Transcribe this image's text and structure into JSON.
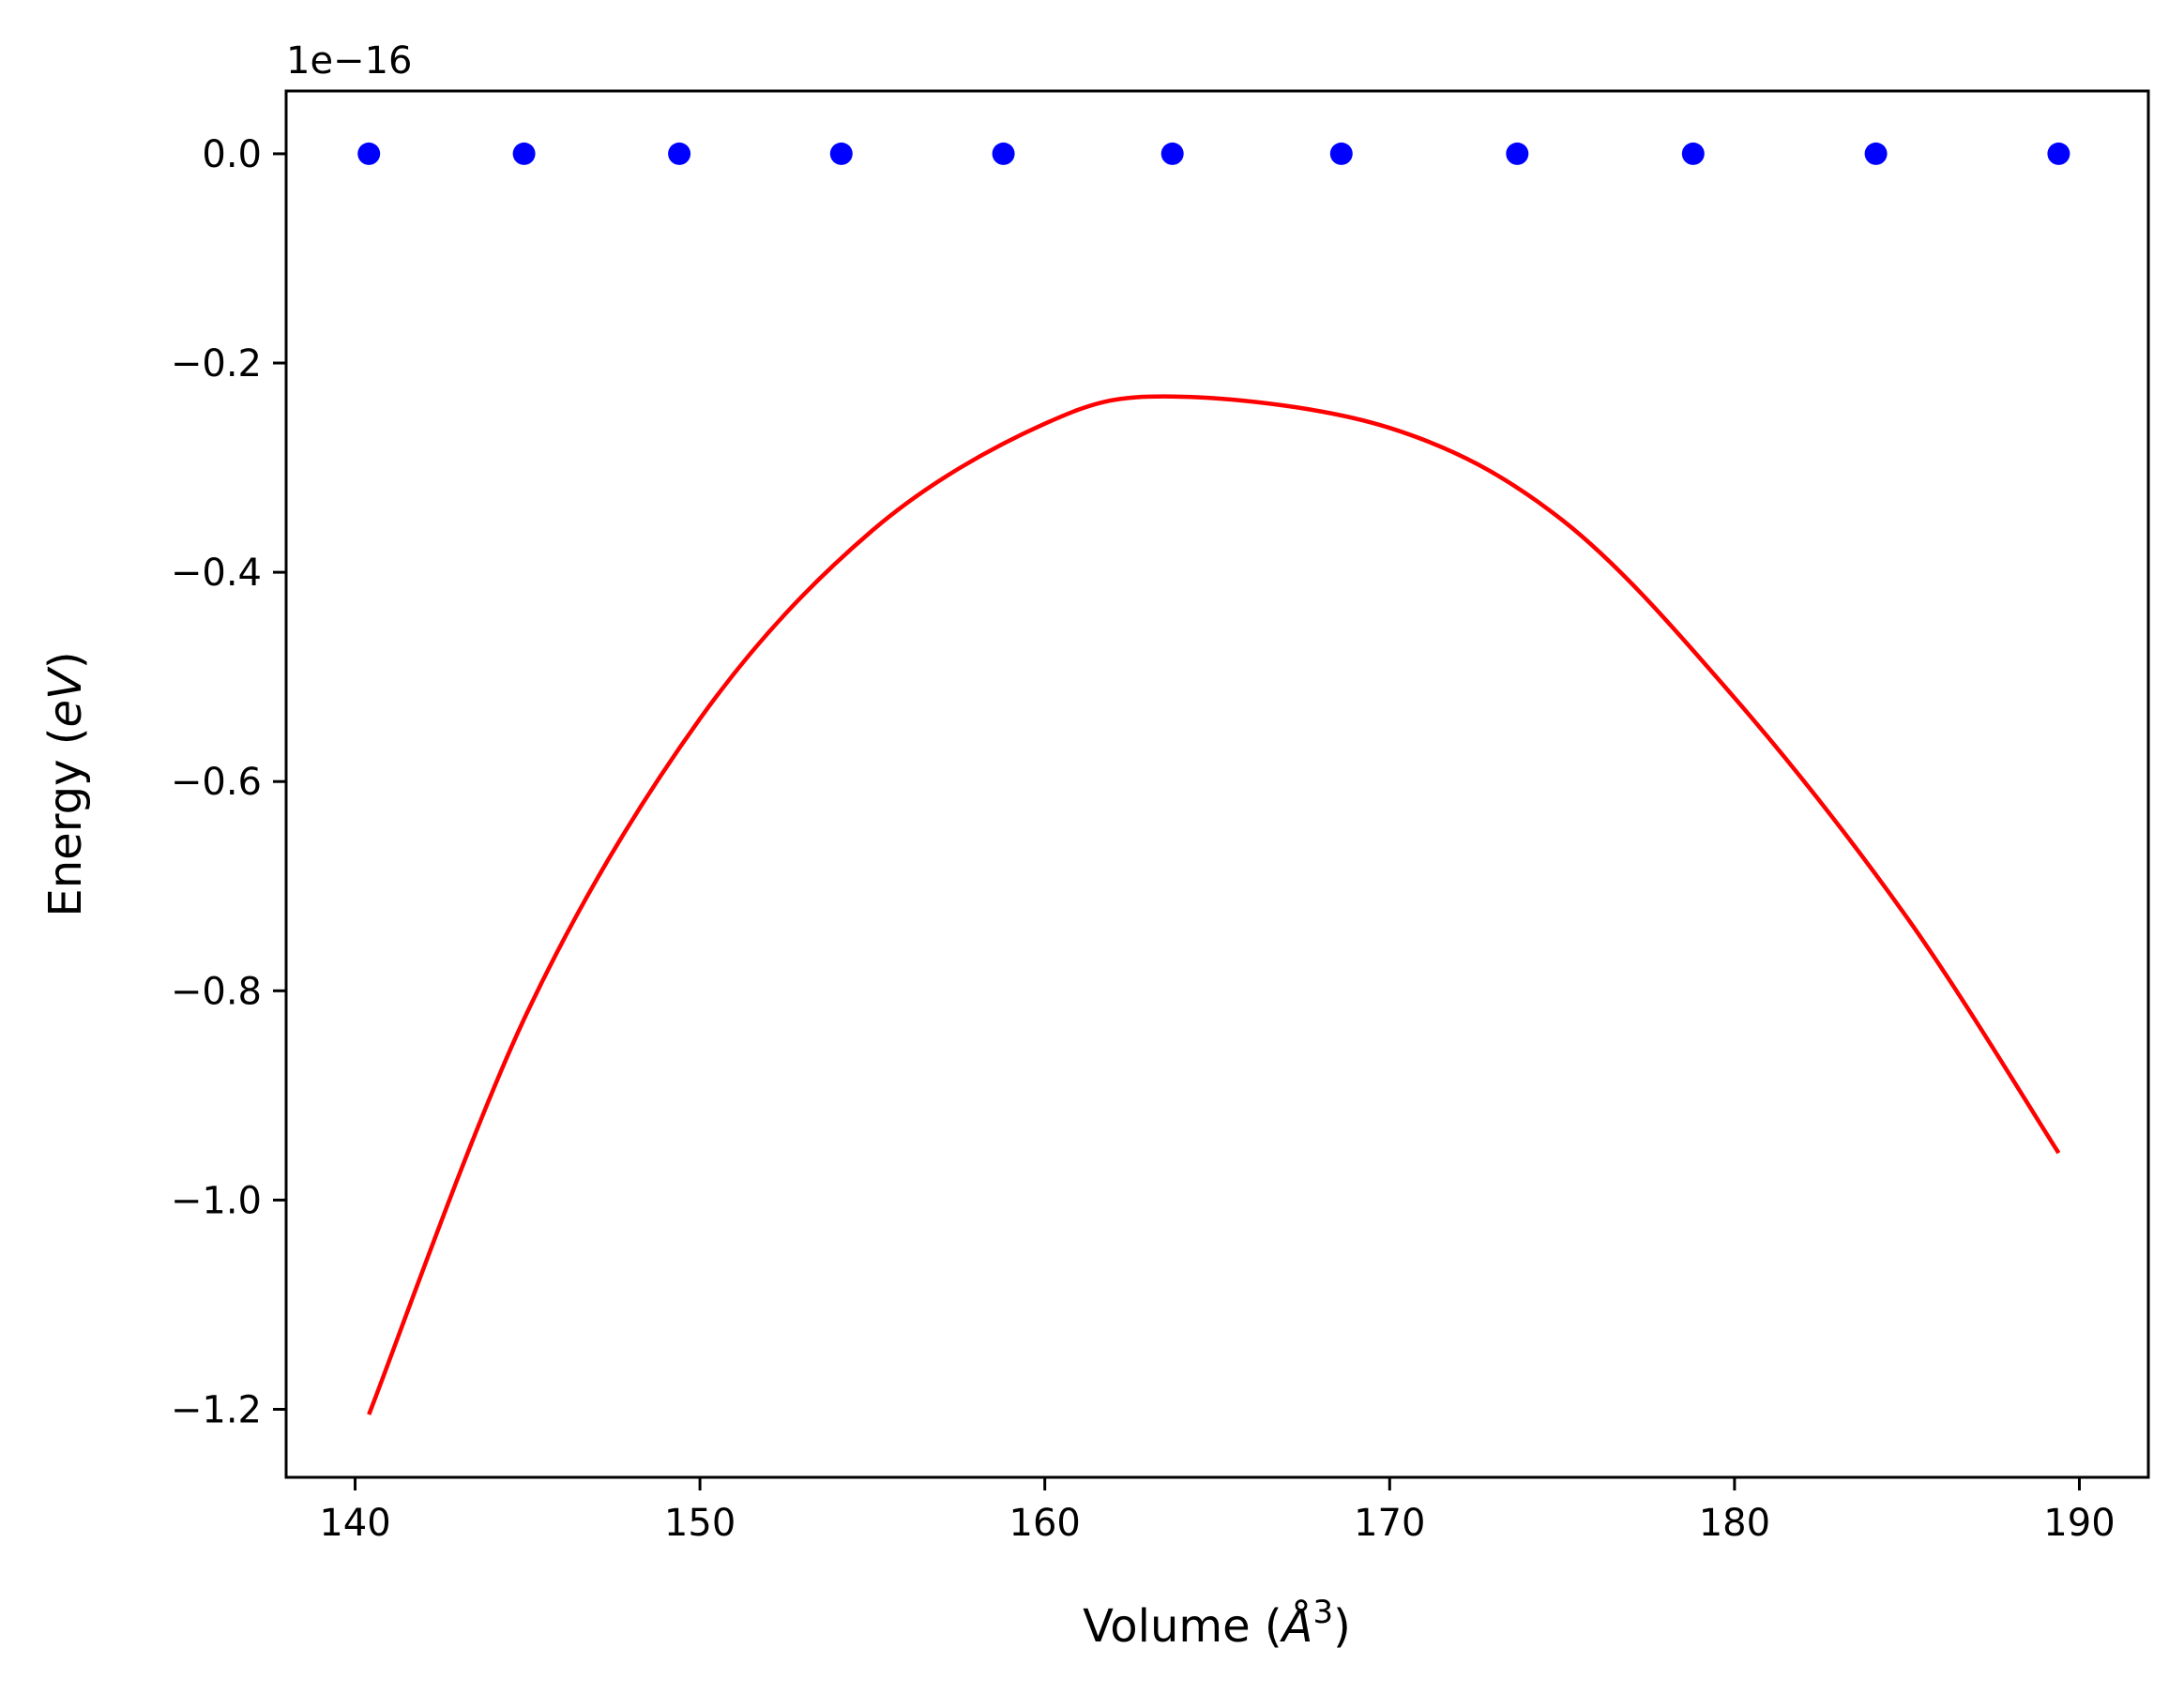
{
  "chart_data": {
    "type": "scatter",
    "xlabel": {
      "prefix": "Volume (",
      "symbol": "Å",
      "exponent": "3",
      "suffix": ")"
    },
    "ylabel": {
      "prefix": "Energy (",
      "symbol": "eV",
      "suffix": ")"
    },
    "offset_label": "1e−16",
    "y_scale_factor": 1e-16,
    "xlim": [
      138,
      192
    ],
    "ylim": [
      -1.265,
      0.06
    ],
    "x_ticks": [
      140,
      150,
      160,
      170,
      180,
      190
    ],
    "x_tick_labels": [
      "140",
      "150",
      "160",
      "170",
      "180",
      "190"
    ],
    "y_ticks": [
      0.0,
      -0.2,
      -0.4,
      -0.6,
      -0.8,
      -1.0,
      -1.2
    ],
    "y_tick_labels": [
      "0.0",
      "−0.2",
      "−0.4",
      "−0.6",
      "−0.8",
      "−1.0",
      "−1.2"
    ],
    "grid": false,
    "series": [
      {
        "kind": "points",
        "color": "#0000ff",
        "x": [
          140.4,
          144.9,
          149.4,
          154.1,
          158.8,
          163.7,
          168.6,
          173.7,
          178.8,
          184.1,
          189.4
        ],
        "y": [
          0,
          0,
          0,
          0,
          0,
          0,
          0,
          0,
          0,
          0,
          0
        ]
      },
      {
        "kind": "line",
        "color": "#ff0000",
        "x": [
          140.4,
          145.0,
          150.0,
          155.0,
          160.0,
          163.7,
          170.0,
          175.0,
          180.0,
          185.0,
          189.4
        ],
        "y": [
          -1.205,
          -0.82,
          -0.54,
          -0.36,
          -0.258,
          -0.232,
          -0.262,
          -0.35,
          -0.52,
          -0.73,
          -0.955
        ]
      }
    ]
  }
}
